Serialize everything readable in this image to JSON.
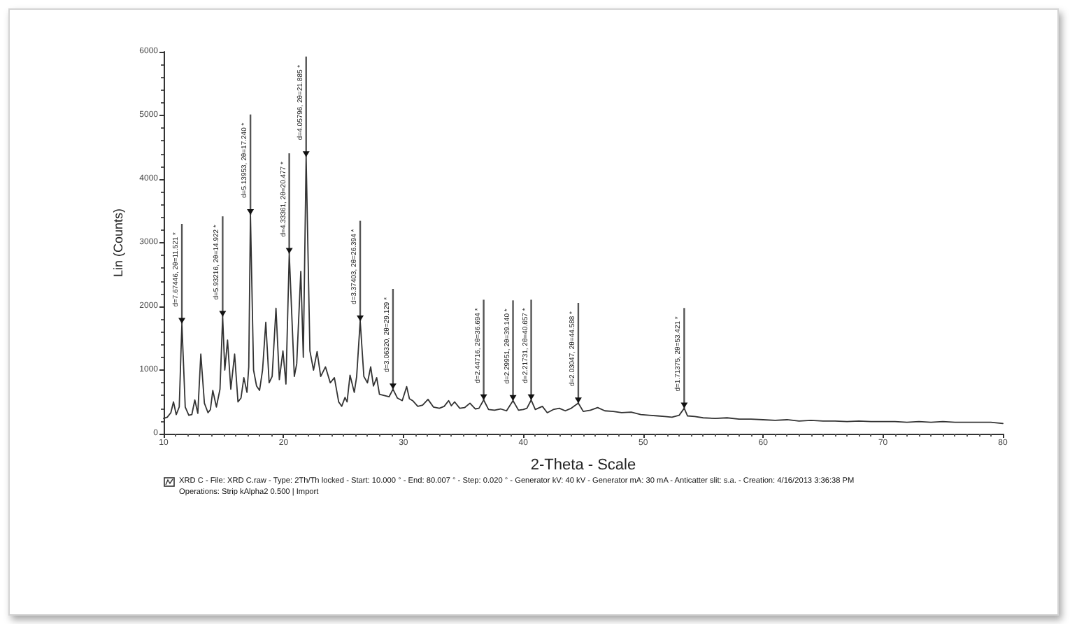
{
  "chart_data": {
    "type": "line",
    "xlabel": "2-Theta - Scale",
    "ylabel": "Lin (Counts)",
    "color": "#333333",
    "line_style": "solid",
    "x": [
      10.0,
      10.3,
      10.6,
      10.82,
      11.05,
      11.3,
      11.521,
      11.8,
      12.1,
      12.35,
      12.6,
      12.85,
      13.1,
      13.4,
      13.7,
      13.9,
      14.1,
      14.4,
      14.7,
      14.922,
      15.1,
      15.33,
      15.6,
      15.92,
      16.2,
      16.45,
      16.69,
      16.95,
      17.1,
      17.24,
      17.5,
      17.75,
      18.0,
      18.25,
      18.52,
      18.8,
      19.05,
      19.37,
      19.65,
      19.95,
      20.2,
      20.477,
      20.9,
      21.1,
      21.44,
      21.65,
      21.885,
      22.2,
      22.5,
      22.8,
      23.1,
      23.5,
      23.9,
      24.24,
      24.6,
      24.85,
      25.13,
      25.3,
      25.546,
      25.9,
      26.1,
      26.394,
      26.7,
      27.0,
      27.27,
      27.5,
      27.77,
      28.0,
      28.4,
      28.8,
      29.129,
      29.5,
      29.9,
      30.27,
      30.5,
      30.77,
      31.2,
      31.6,
      32.05,
      32.5,
      33.0,
      33.4,
      33.77,
      34.0,
      34.27,
      34.7,
      35.1,
      35.55,
      36.0,
      36.3,
      36.694,
      37.1,
      37.6,
      38.1,
      38.6,
      39.14,
      39.6,
      40.0,
      40.3,
      40.657,
      41.0,
      41.59,
      42.0,
      42.5,
      43.0,
      43.5,
      44.0,
      44.588,
      45.0,
      45.6,
      46.2,
      46.8,
      47.5,
      48.2,
      49.0,
      49.8,
      50.5,
      51.2,
      51.8,
      52.4,
      53.0,
      53.421,
      53.7,
      54.3,
      55.0,
      56.0,
      57.0,
      58.0,
      59.0,
      60.0,
      61.0,
      62.0,
      63.0,
      64.0,
      65.0,
      66.0,
      67.0,
      68.0,
      69.0,
      70.0,
      71.0,
      72.0,
      73.0,
      74.0,
      75.0,
      76.0,
      77.0,
      78.0,
      79.0,
      80.0
    ],
    "values": [
      240,
      260,
      330,
      500,
      300,
      420,
      1730,
      420,
      290,
      300,
      530,
      320,
      1250,
      480,
      330,
      380,
      680,
      420,
      700,
      1840,
      1000,
      1470,
      700,
      1250,
      500,
      560,
      880,
      650,
      1050,
      3440,
      1000,
      750,
      680,
      1000,
      1750,
      800,
      900,
      1970,
      850,
      1300,
      780,
      2830,
      900,
      1100,
      2550,
      1200,
      4350,
      1300,
      1000,
      1290,
      900,
      1050,
      800,
      880,
      500,
      430,
      570,
      500,
      920,
      650,
      900,
      1770,
      900,
      800,
      1050,
      750,
      880,
      620,
      600,
      580,
      700,
      560,
      520,
      740,
      550,
      520,
      430,
      450,
      540,
      420,
      400,
      430,
      520,
      440,
      500,
      400,
      410,
      480,
      390,
      400,
      530,
      380,
      370,
      390,
      360,
      520,
      370,
      380,
      400,
      530,
      380,
      430,
      330,
      380,
      400,
      360,
      400,
      480,
      350,
      370,
      410,
      360,
      350,
      330,
      340,
      300,
      290,
      280,
      270,
      260,
      290,
      400,
      280,
      270,
      250,
      240,
      250,
      230,
      230,
      220,
      210,
      220,
      200,
      210,
      200,
      200,
      190,
      200,
      190,
      190,
      190,
      180,
      190,
      180,
      190,
      180,
      180,
      180,
      180,
      160
    ],
    "xlim": [
      10,
      80
    ],
    "xticks": [
      10,
      20,
      30,
      40,
      50,
      60,
      70,
      80
    ],
    "ylim": [
      0,
      6000
    ],
    "yticks": [
      0,
      1000,
      2000,
      3000,
      4000,
      5000,
      6000
    ],
    "annotations": [
      {
        "text": "d=7.67446, 2θ=11.521 *",
        "x": 11.521,
        "y": 1730
      },
      {
        "text": "d=5.93216, 2θ=14.922 *",
        "x": 14.922,
        "y": 1840
      },
      {
        "text": "d=5.13953, 2θ=17.240 *",
        "x": 17.24,
        "y": 3440
      },
      {
        "text": "d=4.33361, 2θ=20.477 *",
        "x": 20.477,
        "y": 2830
      },
      {
        "text": "d=4.05796, 2θ=21.885 *",
        "x": 21.885,
        "y": 4350
      },
      {
        "text": "d=3.37403, 2θ=26.394 *",
        "x": 26.394,
        "y": 1770
      },
      {
        "text": "d=3.06320, 2θ=29.129 *",
        "x": 29.129,
        "y": 700
      },
      {
        "text": "d=2.44716, 2θ=36.694 *",
        "x": 36.694,
        "y": 530
      },
      {
        "text": "d=2.29951, 2θ=39.140 *",
        "x": 39.14,
        "y": 520
      },
      {
        "text": "d=2.21731, 2θ=40.657 *",
        "x": 40.657,
        "y": 530
      },
      {
        "text": "d=2.03047, 2θ=44.588 *",
        "x": 44.588,
        "y": 480
      },
      {
        "text": "d=1.71375, 2θ=53.421 *",
        "x": 53.421,
        "y": 400
      },
      "XRD C - File: XRD C.raw - Type: 2Th/Th locked - Start: 10.000 ° - End: 80.007 ° - Step: 0.020 ° - Generator kV: 40 kV - Generator mA: 30 mA - Anticatter slit: s.a. - Creation: 4/16/2013 3:36:38 PM",
      "Operations: Strip kAlpha2 0.500 | Import"
    ]
  }
}
